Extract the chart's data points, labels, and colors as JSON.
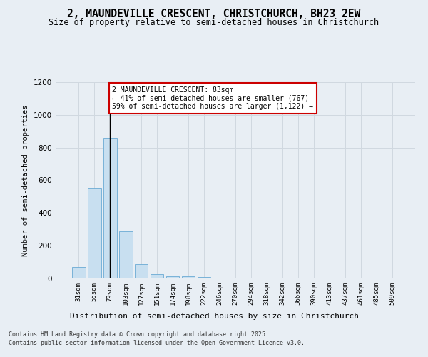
{
  "title_line1": "2, MAUNDEVILLE CRESCENT, CHRISTCHURCH, BH23 2EW",
  "title_line2": "Size of property relative to semi-detached houses in Christchurch",
  "xlabel": "Distribution of semi-detached houses by size in Christchurch",
  "ylabel": "Number of semi-detached properties",
  "categories": [
    "31sqm",
    "55sqm",
    "79sqm",
    "103sqm",
    "127sqm",
    "151sqm",
    "174sqm",
    "198sqm",
    "222sqm",
    "246sqm",
    "270sqm",
    "294sqm",
    "318sqm",
    "342sqm",
    "366sqm",
    "390sqm",
    "413sqm",
    "437sqm",
    "461sqm",
    "485sqm",
    "509sqm"
  ],
  "values": [
    68,
    548,
    860,
    290,
    88,
    25,
    15,
    13,
    10,
    0,
    0,
    0,
    0,
    0,
    0,
    0,
    0,
    0,
    0,
    0,
    0
  ],
  "bar_color": "#c8dff0",
  "bar_edge_color": "#6aaad4",
  "grid_color": "#d0d8e0",
  "vline_x": 2,
  "vline_color": "#000000",
  "annotation_text": "2 MAUNDEVILLE CRESCENT: 83sqm\n← 41% of semi-detached houses are smaller (767)\n59% of semi-detached houses are larger (1,122) →",
  "annotation_box_color": "#ffffff",
  "annotation_box_edge": "#cc0000",
  "ylim": [
    0,
    1200
  ],
  "yticks": [
    0,
    200,
    400,
    600,
    800,
    1000,
    1200
  ],
  "footer_line1": "Contains HM Land Registry data © Crown copyright and database right 2025.",
  "footer_line2": "Contains public sector information licensed under the Open Government Licence v3.0.",
  "background_color": "#e8eef4"
}
